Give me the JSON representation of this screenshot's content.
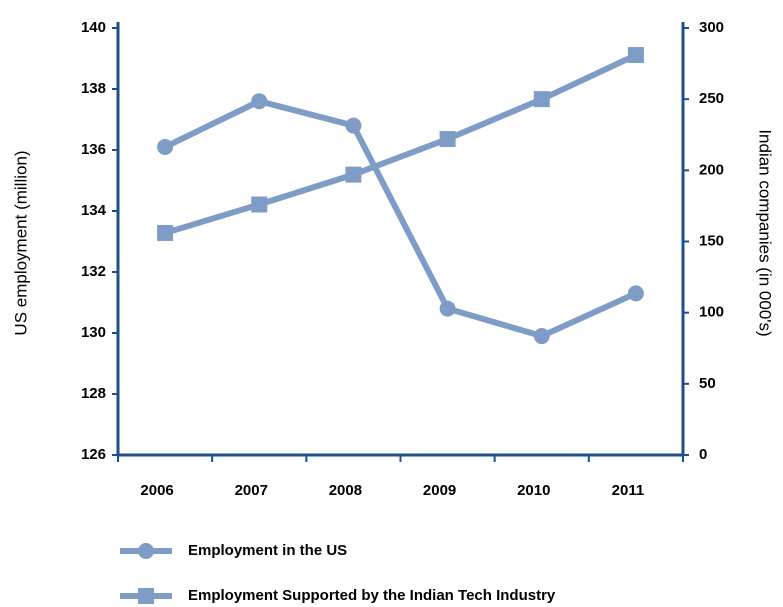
{
  "chart_data": {
    "type": "line",
    "categories": [
      "2006",
      "2007",
      "2008",
      "2009",
      "2010",
      "2011"
    ],
    "y_label": "US employment (million)",
    "y2_label": "Indian companies (in 000's)",
    "ylim": [
      126,
      140
    ],
    "yticks": [
      126,
      128,
      130,
      132,
      134,
      136,
      138,
      140
    ],
    "y2lim": [
      0,
      300
    ],
    "y2ticks": [
      0,
      50,
      100,
      150,
      200,
      250,
      300
    ],
    "axis_color": "#1f4e8c",
    "series": [
      {
        "name": "Employment in the US",
        "color": "#7f9cc6",
        "marker": "circle",
        "values": [
          136.1,
          137.6,
          136.8,
          130.8,
          129.9,
          131.3
        ]
      },
      {
        "name": "Employment Supported by the Indian Tech Industry",
        "color": "#7f9cc6",
        "marker": "square",
        "axis": "y2",
        "values": [
          156,
          176,
          197,
          222,
          250,
          281
        ]
      }
    ]
  }
}
